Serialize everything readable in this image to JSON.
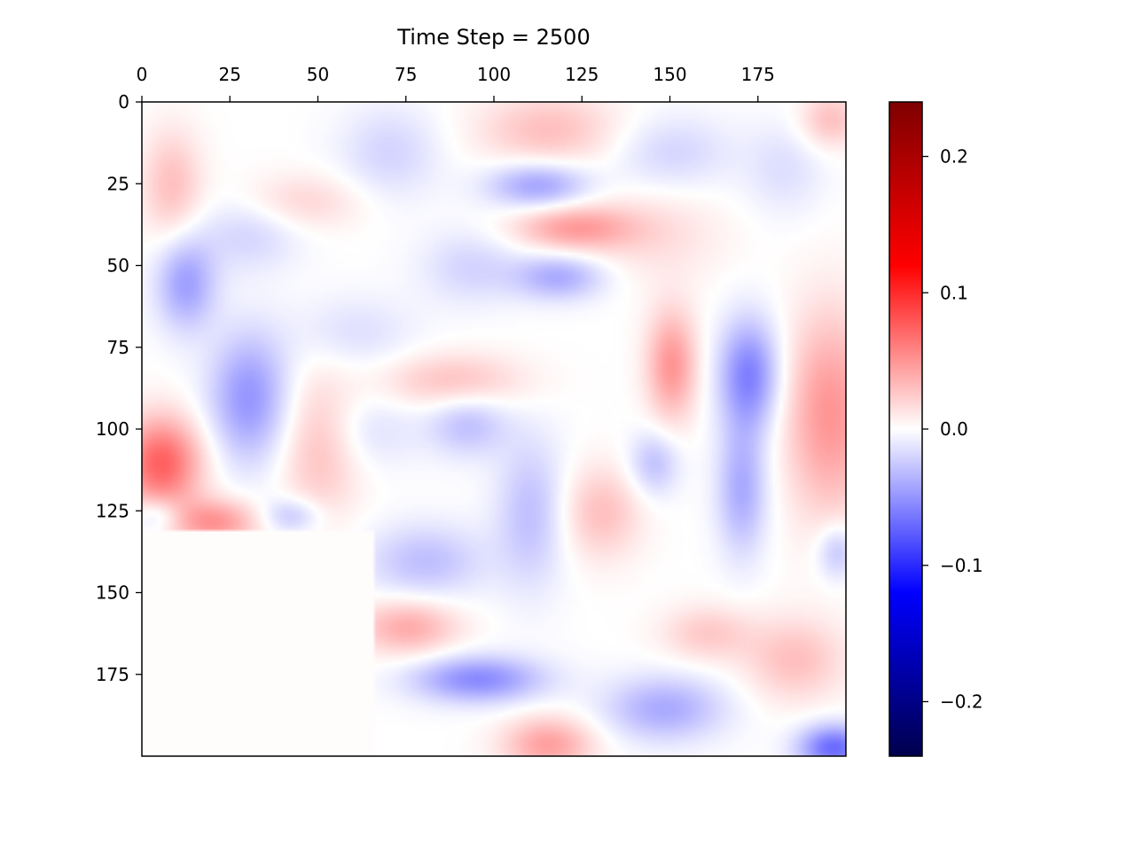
{
  "chart_data": {
    "type": "heatmap",
    "title": "Time Step = 2500",
    "xlabel": "",
    "ylabel": "",
    "grid": false,
    "x_axis_position": "top",
    "y_axis_inverted": true,
    "xlim": [
      0,
      200
    ],
    "ylim": [
      200,
      0
    ],
    "x_ticks": [
      0,
      25,
      50,
      75,
      100,
      125,
      150,
      175
    ],
    "y_ticks": [
      0,
      25,
      50,
      75,
      100,
      125,
      150,
      175
    ],
    "colormap": "seismic",
    "colorbar": {
      "position": "right",
      "range": [
        -0.24,
        0.24
      ],
      "ticks": [
        0.2,
        0.1,
        0.0,
        -0.1,
        -0.2
      ],
      "tick_labels": [
        "0.2",
        "0.1",
        "0.0",
        "−0.1",
        "−0.2"
      ],
      "stops": [
        "#00004c",
        "#0000ff",
        "#ffffff",
        "#ff0000",
        "#7f0000"
      ]
    },
    "masked_region": {
      "x": [
        0,
        66
      ],
      "y": [
        131,
        200
      ],
      "value": 0.0
    },
    "blobs": [
      {
        "x": 115,
        "y": 8,
        "sx": 14,
        "sy": 8,
        "v": 0.03
      },
      {
        "x": 112,
        "y": 25,
        "sx": 10,
        "sy": 5,
        "v": -0.045
      },
      {
        "x": 122,
        "y": 38,
        "sx": 12,
        "sy": 5,
        "v": 0.045
      },
      {
        "x": 118,
        "y": 53,
        "sx": 9,
        "sy": 5,
        "v": -0.04
      },
      {
        "x": 93,
        "y": 50,
        "sx": 10,
        "sy": 8,
        "v": -0.02
      },
      {
        "x": 12,
        "y": 55,
        "sx": 6,
        "sy": 10,
        "v": -0.045
      },
      {
        "x": 8,
        "y": 25,
        "sx": 6,
        "sy": 12,
        "v": 0.03
      },
      {
        "x": 45,
        "y": 30,
        "sx": 12,
        "sy": 6,
        "v": 0.02
      },
      {
        "x": 30,
        "y": 40,
        "sx": 10,
        "sy": 8,
        "v": -0.02
      },
      {
        "x": 30,
        "y": 90,
        "sx": 8,
        "sy": 14,
        "v": -0.05
      },
      {
        "x": 5,
        "y": 110,
        "sx": 8,
        "sy": 10,
        "v": 0.075
      },
      {
        "x": 20,
        "y": 128,
        "sx": 9,
        "sy": 5,
        "v": 0.05
      },
      {
        "x": 4,
        "y": 126,
        "sx": 5,
        "sy": 4,
        "v": -0.03
      },
      {
        "x": 42,
        "y": 126,
        "sx": 6,
        "sy": 4,
        "v": -0.03
      },
      {
        "x": 50,
        "y": 105,
        "sx": 8,
        "sy": 16,
        "v": 0.03
      },
      {
        "x": 88,
        "y": 85,
        "sx": 14,
        "sy": 6,
        "v": 0.03
      },
      {
        "x": 92,
        "y": 98,
        "sx": 8,
        "sy": 7,
        "v": -0.03
      },
      {
        "x": 150,
        "y": 80,
        "sx": 5,
        "sy": 12,
        "v": 0.05
      },
      {
        "x": 172,
        "y": 83,
        "sx": 6,
        "sy": 12,
        "v": -0.06
      },
      {
        "x": 170,
        "y": 118,
        "sx": 5,
        "sy": 14,
        "v": -0.04
      },
      {
        "x": 195,
        "y": 95,
        "sx": 9,
        "sy": 22,
        "v": 0.05
      },
      {
        "x": 95,
        "y": 176,
        "sx": 13,
        "sy": 5,
        "v": -0.055
      },
      {
        "x": 115,
        "y": 196,
        "sx": 9,
        "sy": 6,
        "v": 0.045
      },
      {
        "x": 75,
        "y": 160,
        "sx": 10,
        "sy": 6,
        "v": 0.04
      },
      {
        "x": 80,
        "y": 140,
        "sx": 12,
        "sy": 8,
        "v": -0.03
      },
      {
        "x": 148,
        "y": 185,
        "sx": 12,
        "sy": 7,
        "v": -0.04
      },
      {
        "x": 196,
        "y": 197,
        "sx": 7,
        "sy": 5,
        "v": -0.07
      },
      {
        "x": 185,
        "y": 170,
        "sx": 10,
        "sy": 9,
        "v": 0.03
      },
      {
        "x": 160,
        "y": 162,
        "sx": 9,
        "sy": 6,
        "v": 0.025
      },
      {
        "x": 130,
        "y": 125,
        "sx": 8,
        "sy": 10,
        "v": 0.03
      },
      {
        "x": 110,
        "y": 125,
        "sx": 7,
        "sy": 16,
        "v": -0.03
      },
      {
        "x": 145,
        "y": 40,
        "sx": 14,
        "sy": 10,
        "v": 0.015
      },
      {
        "x": 150,
        "y": 15,
        "sx": 12,
        "sy": 8,
        "v": -0.02
      },
      {
        "x": 195,
        "y": 5,
        "sx": 6,
        "sy": 6,
        "v": 0.03
      },
      {
        "x": 182,
        "y": 20,
        "sx": 8,
        "sy": 10,
        "v": -0.015
      },
      {
        "x": 145,
        "y": 110,
        "sx": 5,
        "sy": 7,
        "v": -0.03
      },
      {
        "x": 197,
        "y": 137,
        "sx": 4,
        "sy": 6,
        "v": -0.03
      },
      {
        "x": 64,
        "y": 100,
        "sx": 10,
        "sy": 8,
        "v": -0.015
      },
      {
        "x": 60,
        "y": 70,
        "sx": 12,
        "sy": 8,
        "v": -0.015
      },
      {
        "x": 70,
        "y": 15,
        "sx": 10,
        "sy": 10,
        "v": -0.02
      }
    ]
  }
}
